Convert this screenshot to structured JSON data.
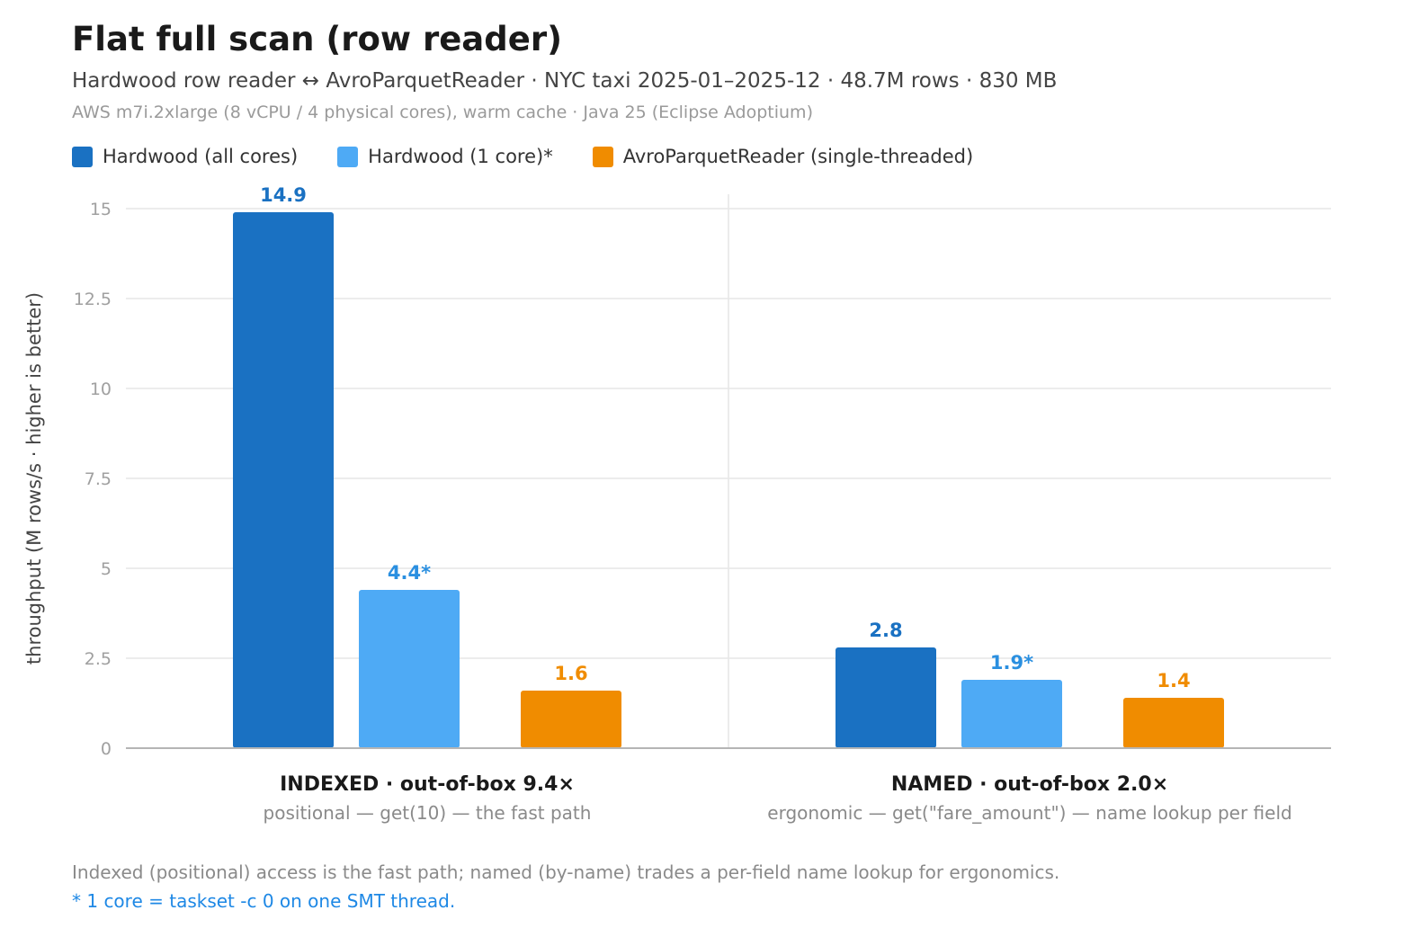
{
  "header": {
    "title": "Flat full scan (row reader)",
    "subtitle": "Hardwood row reader ↔ AvroParquetReader · NYC taxi 2025-01–2025-12 · 48.7M rows · 830 MB",
    "meta": "AWS m7i.2xlarge (8 vCPU / 4 physical cores), warm cache · Java 25 (Eclipse Adoptium)"
  },
  "notes": {
    "line1": "Indexed (positional) access is the fast path; named (by-name) trades a per-field name lookup for ergonomics.",
    "line2": "* 1 core = taskset -c 0 on one SMT thread."
  },
  "chart_data": {
    "type": "bar",
    "title": "Flat full scan (row reader)",
    "ylabel": "throughput (M rows/s · higher is better)",
    "xlabel": "",
    "ylim": [
      0,
      15
    ],
    "yticks": [
      0,
      2.5,
      5,
      7.5,
      10,
      12.5,
      15
    ],
    "ytick_labels": [
      "0",
      "2.5",
      "5",
      "7.5",
      "10",
      "12.5",
      "15"
    ],
    "grid": true,
    "legend_position": "top-left",
    "categories": [
      "INDEXED · out-of-box 9.4×",
      "NAMED · out-of-box 2.0×"
    ],
    "category_subtitles": [
      "positional — get(10) — the fast path",
      "ergonomic — get(\"fare_amount\") — name lookup per field"
    ],
    "series": [
      {
        "name": "Hardwood (all cores)",
        "color": "#1a71c2",
        "values": [
          14.9,
          2.8
        ],
        "labels": [
          "14.9",
          "2.8"
        ]
      },
      {
        "name": "Hardwood (1 core)*",
        "color": "#4eaaf5",
        "label_color": "#2a8fe0",
        "values": [
          4.4,
          1.9
        ],
        "labels": [
          "4.4*",
          "1.9*"
        ]
      },
      {
        "name": "AvroParquetReader (single-threaded)",
        "color": "#f08c00",
        "values": [
          1.6,
          1.4
        ],
        "labels": [
          "1.6",
          "1.4"
        ]
      }
    ]
  }
}
